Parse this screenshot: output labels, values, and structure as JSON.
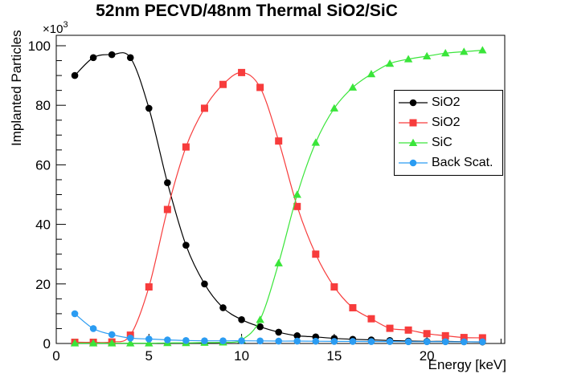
{
  "title": "52nm PECVD/48nm Thermal SiO2/SiC",
  "colors": {
    "foreground": "#000000",
    "background": "#ffffff",
    "series_black": "#000000",
    "series_red": "#f73c3c",
    "series_green": "#3ae53a",
    "series_blue": "#2b9cf2"
  },
  "chart_data": {
    "type": "line",
    "title": "52nm PECVD/48nm Thermal SiO2/SiC",
    "xlabel": "Energy [keV]",
    "ylabel": "Implanted Particles",
    "y_power_prefix": "×10",
    "y_power_exponent": "3",
    "xlim": [
      0,
      24.2
    ],
    "ylim": [
      0,
      103.5
    ],
    "x_major_ticks": [
      0,
      5,
      10,
      15,
      20
    ],
    "x_tick_labels": [
      "0",
      "5",
      "10",
      "15",
      "20"
    ],
    "x_minor_step": 1,
    "y_major_ticks": [
      0,
      20,
      40,
      60,
      80,
      100
    ],
    "y_tick_labels": [
      "0",
      "20",
      "40",
      "60",
      "80",
      "100"
    ],
    "y_minor_step": 5,
    "grid": false,
    "legend_position": "middle-right",
    "x": [
      1,
      2,
      3,
      4,
      5,
      6,
      7,
      8,
      9,
      10,
      11,
      12,
      13,
      14,
      15,
      16,
      17,
      18,
      19,
      20,
      21,
      22,
      23
    ],
    "series": [
      {
        "name": "SiO2",
        "marker": "circle",
        "color": "#000000",
        "values": [
          90,
          96,
          97,
          96,
          79,
          54,
          33,
          20,
          12,
          8,
          5.6,
          3.8,
          2.6,
          2.2,
          1.7,
          1.4,
          1.2,
          1.0,
          0.8,
          0.7,
          0.7,
          0.6,
          0.5
        ]
      },
      {
        "name": "SiO2",
        "marker": "square",
        "color": "#f73c3c",
        "values": [
          0.4,
          0.4,
          0.5,
          2.8,
          19,
          45,
          66,
          79,
          87,
          91,
          86,
          68,
          46,
          30,
          19,
          12,
          8.3,
          5.1,
          4.5,
          3.3,
          2.6,
          2.0,
          1.9
        ]
      },
      {
        "name": "SiC",
        "marker": "triangle",
        "color": "#3ae53a",
        "values": [
          0.1,
          0.1,
          0.1,
          0.1,
          0.1,
          0.2,
          0.2,
          0.3,
          0.4,
          1.2,
          8,
          27,
          50,
          67.5,
          79,
          86,
          90.5,
          94,
          95.5,
          96.5,
          97.5,
          98,
          98.5
        ]
      },
      {
        "name": "Back Scat.",
        "marker": "circle",
        "color": "#2b9cf2",
        "values": [
          10,
          5,
          3,
          1.8,
          1.5,
          1.2,
          1.0,
          0.9,
          0.9,
          0.9,
          0.85,
          0.8,
          0.8,
          0.75,
          0.7,
          0.7,
          0.65,
          0.65,
          0.6,
          0.6,
          0.6,
          0.55,
          0.55
        ]
      }
    ]
  }
}
